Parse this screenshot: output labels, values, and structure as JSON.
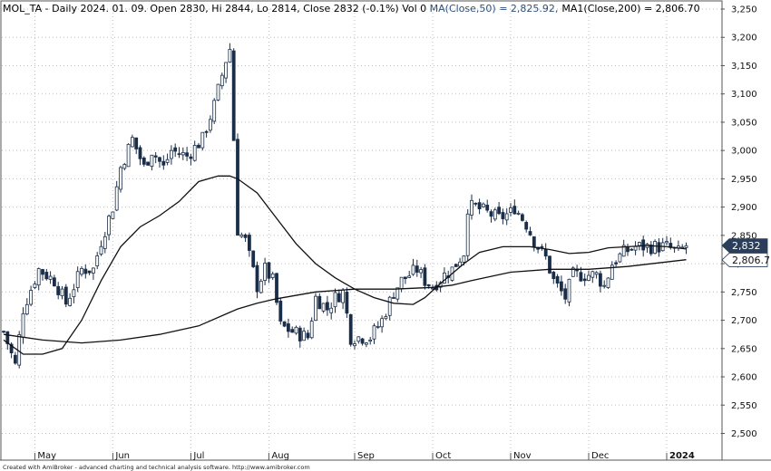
{
  "header": {
    "symbol": "MOL_TA",
    "info": " - Daily 2024. 01. 09. Open 2830, Hi 2844, Lo 2814, Close 2832 (-0.1%) Vol 0 ",
    "ma50_label": "MA(Close,50) = 2,825.92,",
    "ma200_label": "MA1(Close,200) = 2,806.70"
  },
  "footer": "Created with AmiBroker - advanced charting and technical analysis software. http://www.amibroker.com",
  "colors": {
    "candle_up": "#ffffff",
    "candle_down": "#1a2e4a",
    "outline": "#1a2e4a",
    "ma": "#111111",
    "grid": "#bfbfbf",
    "marker_fill": "#2b3f5c"
  },
  "chart_data": {
    "type": "candlestick",
    "title": "MOL_TA - Daily",
    "ylim": [
      2470,
      3270
    ],
    "y_ticks": [
      2500,
      2550,
      2600,
      2650,
      2700,
      2750,
      2800,
      2850,
      2900,
      2950,
      3000,
      3050,
      3100,
      3150,
      3200,
      3250
    ],
    "y_tick_labels": [
      "2,500",
      "2,550",
      "2,600",
      "2,650",
      "2,700",
      "2,750",
      "2,800",
      "2,850",
      "2,900",
      "2,950",
      "3,000",
      "3,050",
      "3,100",
      "3,150",
      "3,200",
      "3,250"
    ],
    "x_range": [
      0,
      184
    ],
    "x_ticks": [
      {
        "label": "May",
        "x": 8
      },
      {
        "label": "Jun",
        "x": 28
      },
      {
        "label": "Jul",
        "x": 48
      },
      {
        "label": "Aug",
        "x": 68
      },
      {
        "label": "Sep",
        "x": 90
      },
      {
        "label": "Oct",
        "x": 110
      },
      {
        "label": "Nov",
        "x": 130
      },
      {
        "label": "Dec",
        "x": 150
      },
      {
        "label": "2024",
        "x": 170
      }
    ],
    "markers": [
      {
        "label": "2,832",
        "value": 2832
      },
      {
        "label": "2,806.7",
        "value": 2806.7
      }
    ],
    "candle_anchors": [
      [
        0,
        2680
      ],
      [
        3,
        2620
      ],
      [
        5,
        2720
      ],
      [
        9,
        2790
      ],
      [
        13,
        2770
      ],
      [
        16,
        2730
      ],
      [
        20,
        2790
      ],
      [
        23,
        2790
      ],
      [
        25,
        2840
      ],
      [
        28,
        2900
      ],
      [
        30,
        2970
      ],
      [
        33,
        3020
      ],
      [
        36,
        2970
      ],
      [
        38,
        3000
      ],
      [
        41,
        2970
      ],
      [
        43,
        3000
      ],
      [
        47,
        2990
      ],
      [
        51,
        3020
      ],
      [
        54,
        3080
      ],
      [
        57,
        3160
      ],
      [
        58,
        3180
      ],
      [
        60,
        2860
      ],
      [
        62,
        2840
      ],
      [
        65,
        2760
      ],
      [
        67,
        2790
      ],
      [
        69,
        2770
      ],
      [
        71,
        2690
      ],
      [
        74,
        2680
      ],
      [
        78,
        2670
      ],
      [
        80,
        2740
      ],
      [
        83,
        2720
      ],
      [
        85,
        2740
      ],
      [
        87,
        2750
      ],
      [
        89,
        2670
      ],
      [
        92,
        2670
      ],
      [
        94,
        2670
      ],
      [
        97,
        2700
      ],
      [
        100,
        2750
      ],
      [
        102,
        2770
      ],
      [
        106,
        2790
      ],
      [
        108,
        2770
      ],
      [
        110,
        2760
      ],
      [
        113,
        2780
      ],
      [
        115,
        2790
      ],
      [
        118,
        2820
      ],
      [
        119,
        2900
      ],
      [
        121,
        2900
      ],
      [
        124,
        2890
      ],
      [
        127,
        2880
      ],
      [
        130,
        2890
      ],
      [
        131,
        2900
      ],
      [
        134,
        2870
      ],
      [
        136,
        2840
      ],
      [
        139,
        2810
      ],
      [
        141,
        2770
      ],
      [
        144,
        2740
      ],
      [
        146,
        2780
      ],
      [
        149,
        2780
      ],
      [
        152,
        2780
      ],
      [
        154,
        2760
      ],
      [
        156,
        2800
      ],
      [
        159,
        2820
      ],
      [
        162,
        2830
      ],
      [
        166,
        2830
      ],
      [
        170,
        2830
      ],
      [
        173,
        2820
      ],
      [
        175,
        2832
      ]
    ],
    "series": [
      {
        "name": "MA(Close,50)",
        "x": [
          0,
          5,
          10,
          15,
          20,
          25,
          30,
          35,
          40,
          45,
          50,
          55,
          58,
          60,
          65,
          70,
          75,
          80,
          85,
          90,
          95,
          100,
          105,
          108,
          112,
          118,
          122,
          128,
          135,
          140,
          145,
          150,
          155,
          160,
          165,
          170,
          175
        ],
        "values": [
          2665,
          2640,
          2640,
          2650,
          2700,
          2770,
          2830,
          2865,
          2885,
          2910,
          2945,
          2955,
          2955,
          2950,
          2925,
          2880,
          2835,
          2800,
          2775,
          2755,
          2740,
          2730,
          2728,
          2740,
          2765,
          2800,
          2820,
          2830,
          2830,
          2825,
          2818,
          2820,
          2828,
          2830,
          2832,
          2830,
          2826
        ]
      },
      {
        "name": "MA1(Close,200)",
        "x": [
          0,
          10,
          20,
          30,
          40,
          50,
          60,
          65,
          70,
          80,
          90,
          100,
          110,
          115,
          120,
          130,
          140,
          150,
          160,
          170,
          175
        ],
        "values": [
          2675,
          2665,
          2660,
          2665,
          2675,
          2690,
          2720,
          2730,
          2738,
          2750,
          2755,
          2755,
          2758,
          2762,
          2770,
          2785,
          2790,
          2790,
          2795,
          2803,
          2807
        ]
      }
    ]
  }
}
